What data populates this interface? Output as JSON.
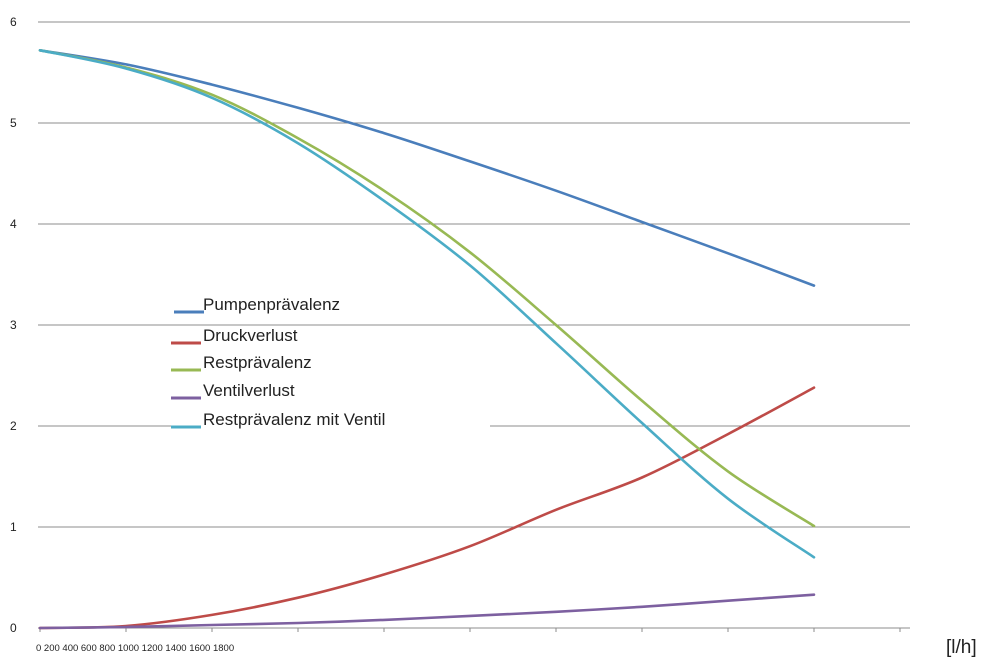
{
  "chart_data": {
    "type": "line",
    "x_unit": "[l/h]",
    "x_tick_labels": [
      "0",
      "200",
      "400",
      "600",
      "800",
      "1000",
      "1200",
      "1400",
      "1600",
      "1800"
    ],
    "ylim": [
      0,
      6
    ],
    "y_ticks": [
      "0",
      "1",
      "2",
      "3",
      "4",
      "5",
      "6"
    ],
    "grid": true,
    "legend_position": "center-left",
    "series": [
      {
        "name": "Pumpenprävalenz",
        "color": "#4a7ebb",
        "points": [
          [
            0,
            5.72
          ],
          [
            1,
            5.58
          ],
          [
            2,
            5.38
          ],
          [
            3,
            5.15
          ],
          [
            4,
            4.9
          ],
          [
            5,
            4.62
          ],
          [
            6,
            4.33
          ],
          [
            7,
            4.02
          ],
          [
            8,
            3.71
          ],
          [
            9,
            3.39
          ]
        ]
      },
      {
        "name": "Druckverlust",
        "color": "#be4b48",
        "points": [
          [
            0,
            0.0
          ],
          [
            1,
            0.02
          ],
          [
            2,
            0.13
          ],
          [
            3,
            0.3
          ],
          [
            4,
            0.53
          ],
          [
            5,
            0.81
          ],
          [
            6,
            1.17
          ],
          [
            7,
            1.49
          ],
          [
            8,
            1.92
          ],
          [
            9,
            2.38
          ]
        ]
      },
      {
        "name": "Restprävalenz",
        "color": "#98b954",
        "points": [
          [
            0,
            5.72
          ],
          [
            1,
            5.55
          ],
          [
            2,
            5.28
          ],
          [
            3,
            4.85
          ],
          [
            4,
            4.33
          ],
          [
            5,
            3.72
          ],
          [
            6,
            3.0
          ],
          [
            7,
            2.25
          ],
          [
            8,
            1.55
          ],
          [
            9,
            1.01
          ]
        ]
      },
      {
        "name": "Ventilverlust",
        "color": "#7d60a0",
        "points": [
          [
            0,
            0.0
          ],
          [
            1,
            0.01
          ],
          [
            2,
            0.03
          ],
          [
            3,
            0.05
          ],
          [
            4,
            0.08
          ],
          [
            5,
            0.12
          ],
          [
            6,
            0.16
          ],
          [
            7,
            0.21
          ],
          [
            8,
            0.27
          ],
          [
            9,
            0.33
          ]
        ]
      },
      {
        "name": "Restprävalenz mit Ventil",
        "color": "#4bacc6",
        "points": [
          [
            0,
            5.72
          ],
          [
            1,
            5.54
          ],
          [
            2,
            5.25
          ],
          [
            3,
            4.8
          ],
          [
            4,
            4.23
          ],
          [
            5,
            3.59
          ],
          [
            6,
            2.82
          ],
          [
            7,
            2.03
          ],
          [
            8,
            1.28
          ],
          [
            9,
            0.7
          ]
        ]
      }
    ]
  }
}
